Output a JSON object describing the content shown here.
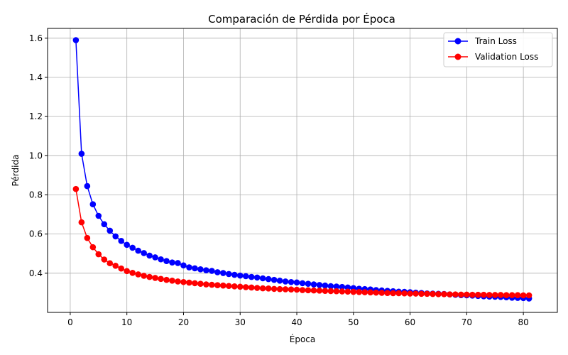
{
  "chart_data": {
    "type": "line",
    "title": "Comparación de Pérdida por Época",
    "xlabel": "Época",
    "ylabel": "Pérdida",
    "xlim": [
      -4.0,
      86.0
    ],
    "ylim": [
      0.2,
      1.65
    ],
    "xticks": [
      "0",
      "10",
      "20",
      "30",
      "40",
      "50",
      "60",
      "70",
      "80"
    ],
    "yticks": [
      "0.4",
      "0.6",
      "0.8",
      "1.0",
      "1.2",
      "1.4",
      "1.6"
    ],
    "grid": true,
    "legend_position": "top-right",
    "x": [
      1,
      2,
      3,
      4,
      5,
      6,
      7,
      8,
      9,
      10,
      11,
      12,
      13,
      14,
      15,
      16,
      17,
      18,
      19,
      20,
      21,
      22,
      23,
      24,
      25,
      26,
      27,
      28,
      29,
      30,
      31,
      32,
      33,
      34,
      35,
      36,
      37,
      38,
      39,
      40,
      41,
      42,
      43,
      44,
      45,
      46,
      47,
      48,
      49,
      50,
      51,
      52,
      53,
      54,
      55,
      56,
      57,
      58,
      59,
      60,
      61,
      62,
      63,
      64,
      65,
      66,
      67,
      68,
      69,
      70,
      71,
      72,
      73,
      74,
      75,
      76,
      77,
      78,
      79,
      80,
      81
    ],
    "series": [
      {
        "name": "Train Loss",
        "color": "#0000ff",
        "values": [
          1.59,
          1.01,
          0.845,
          0.752,
          0.693,
          0.65,
          0.617,
          0.588,
          0.565,
          0.545,
          0.53,
          0.515,
          0.503,
          0.49,
          0.481,
          0.471,
          0.462,
          0.455,
          0.452,
          0.44,
          0.43,
          0.425,
          0.42,
          0.415,
          0.412,
          0.405,
          0.401,
          0.396,
          0.392,
          0.388,
          0.385,
          0.381,
          0.378,
          0.374,
          0.37,
          0.366,
          0.362,
          0.358,
          0.355,
          0.353,
          0.349,
          0.346,
          0.343,
          0.34,
          0.337,
          0.334,
          0.332,
          0.33,
          0.327,
          0.324,
          0.321,
          0.319,
          0.317,
          0.314,
          0.312,
          0.31,
          0.308,
          0.306,
          0.305,
          0.303,
          0.301,
          0.299,
          0.297,
          0.296,
          0.295,
          0.294,
          0.292,
          0.29,
          0.288,
          0.287,
          0.286,
          0.284,
          0.282,
          0.281,
          0.28,
          0.279,
          0.277,
          0.275,
          0.274,
          0.273,
          0.271
        ]
      },
      {
        "name": "Validation Loss",
        "color": "#ff0000",
        "values": [
          0.83,
          0.66,
          0.58,
          0.533,
          0.497,
          0.47,
          0.451,
          0.438,
          0.424,
          0.411,
          0.402,
          0.394,
          0.387,
          0.381,
          0.376,
          0.371,
          0.366,
          0.362,
          0.358,
          0.355,
          0.352,
          0.349,
          0.346,
          0.343,
          0.341,
          0.339,
          0.337,
          0.335,
          0.333,
          0.331,
          0.329,
          0.327,
          0.325,
          0.323,
          0.322,
          0.32,
          0.319,
          0.318,
          0.317,
          0.316,
          0.314,
          0.313,
          0.312,
          0.311,
          0.31,
          0.309,
          0.308,
          0.307,
          0.306,
          0.305,
          0.304,
          0.303,
          0.302,
          0.301,
          0.3,
          0.299,
          0.298,
          0.298,
          0.297,
          0.296,
          0.296,
          0.295,
          0.295,
          0.294,
          0.293,
          0.293,
          0.292,
          0.292,
          0.291,
          0.291,
          0.29,
          0.29,
          0.29,
          0.289,
          0.289,
          0.289,
          0.288,
          0.288,
          0.288,
          0.287,
          0.287
        ]
      }
    ]
  }
}
